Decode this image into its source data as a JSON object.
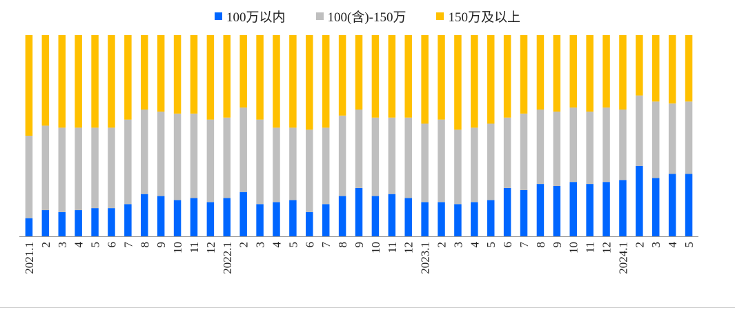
{
  "chart_data": {
    "type": "bar",
    "stacked": true,
    "percent_stacked": true,
    "legend_position": "top",
    "categories": [
      "2021.1",
      "2",
      "3",
      "4",
      "5",
      "6",
      "7",
      "8",
      "9",
      "10",
      "11",
      "12",
      "2022.1",
      "2",
      "3",
      "4",
      "5",
      "6",
      "7",
      "8",
      "9",
      "10",
      "11",
      "12",
      "2023.1",
      "2",
      "3",
      "4",
      "5",
      "6",
      "7",
      "8",
      "9",
      "10",
      "11",
      "12",
      "2024.1",
      "2",
      "3",
      "4",
      "5"
    ],
    "series": [
      {
        "name": "100万以内",
        "color": "#0066FF",
        "values": [
          9,
          13,
          12,
          13,
          14,
          14,
          16,
          21,
          20,
          18,
          19,
          17,
          19,
          22,
          16,
          17,
          18,
          12,
          16,
          20,
          24,
          20,
          21,
          19,
          17,
          17,
          16,
          17,
          18,
          24,
          23,
          26,
          25,
          27,
          26,
          27,
          28,
          35,
          29,
          31,
          31
        ]
      },
      {
        "name": "100(含)-150万",
        "color": "#BFBFBF",
        "values": [
          41,
          42,
          42,
          41,
          40,
          40,
          42,
          42,
          42,
          43,
          42,
          41,
          40,
          42,
          42,
          37,
          36,
          41,
          38,
          40,
          39,
          39,
          38,
          40,
          39,
          41,
          37,
          37,
          38,
          35,
          38,
          37,
          37,
          37,
          36,
          37,
          35,
          35,
          38,
          35,
          36
        ]
      },
      {
        "name": "150万及以上",
        "color": "#FFC000",
        "values": [
          50,
          45,
          46,
          46,
          46,
          46,
          42,
          37,
          38,
          39,
          39,
          42,
          41,
          36,
          42,
          46,
          46,
          47,
          46,
          40,
          37,
          41,
          41,
          41,
          44,
          42,
          47,
          46,
          44,
          41,
          39,
          37,
          38,
          36,
          38,
          36,
          37,
          30,
          33,
          34,
          33
        ]
      }
    ],
    "ylim": [
      0,
      100
    ]
  }
}
